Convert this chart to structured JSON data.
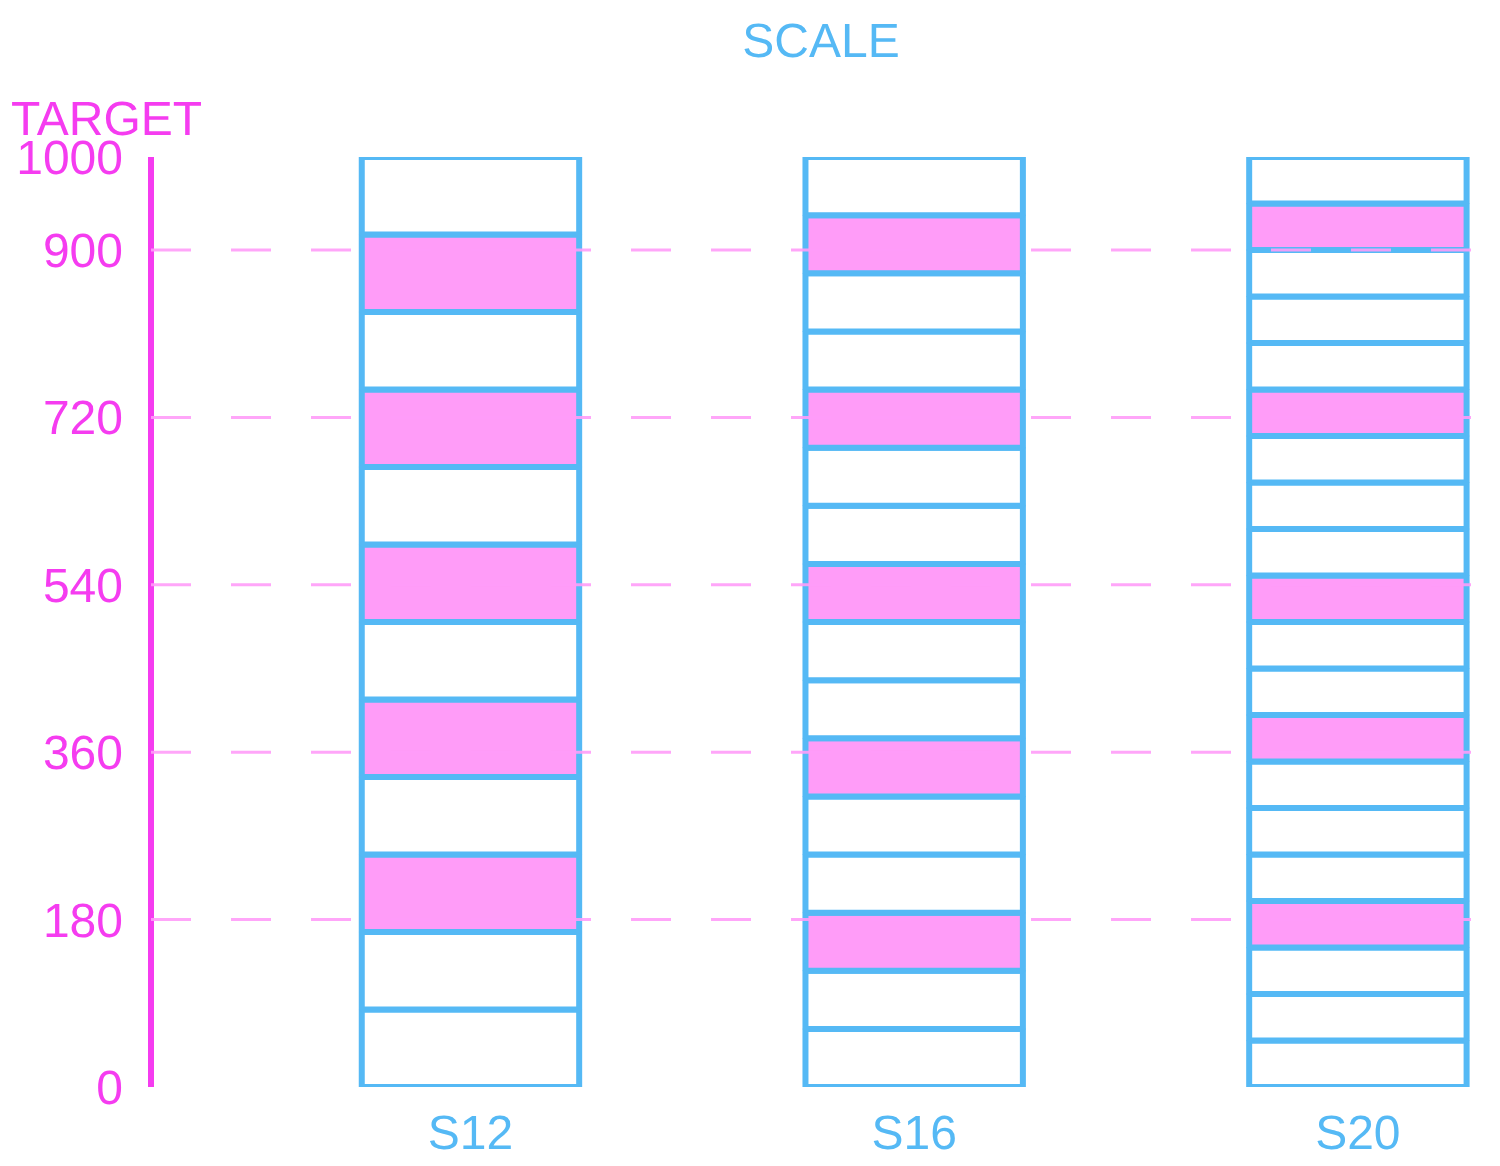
{
  "chart_data": {
    "type": "bar",
    "stacked": true,
    "title": "SCALE",
    "ylabel": "TARGET",
    "categories": [
      "S12",
      "S16",
      "S20"
    ],
    "ylim": [
      0,
      1000
    ],
    "yticks": [
      0,
      180,
      360,
      540,
      720,
      900,
      1000
    ],
    "grid": false,
    "series": [
      {
        "values": [
          83.33,
          62.5,
          50
        ],
        "colors": [
          "#ffffff",
          "#ffffff",
          "#ffffff"
        ]
      },
      {
        "values": [
          83.33,
          62.5,
          50
        ],
        "colors": [
          "#ffffff",
          "#ffffff",
          "#ffffff"
        ]
      },
      {
        "values": [
          83.33,
          62.5,
          50
        ],
        "colors": [
          "#ff9cf8",
          "#ff9cf8",
          "#ffffff"
        ]
      },
      {
        "values": [
          83.33,
          62.5,
          50
        ],
        "colors": [
          "#ffffff",
          "#ffffff",
          "#ff9cf8"
        ]
      },
      {
        "values": [
          83.33,
          62.5,
          50
        ],
        "colors": [
          "#ff9cf8",
          "#ffffff",
          "#ffffff"
        ]
      },
      {
        "values": [
          83.33,
          62.5,
          50
        ],
        "colors": [
          "#ffffff",
          "#ff9cf8",
          "#ffffff"
        ]
      },
      {
        "values": [
          83.33,
          62.5,
          50
        ],
        "colors": [
          "#ff9cf8",
          "#ffffff",
          "#ffffff"
        ]
      },
      {
        "values": [
          83.33,
          62.5,
          50
        ],
        "colors": [
          "#ffffff",
          "#ffffff",
          "#ff9cf8"
        ]
      },
      {
        "values": [
          83.33,
          62.5,
          50
        ],
        "colors": [
          "#ff9cf8",
          "#ff9cf8",
          "#ffffff"
        ]
      },
      {
        "values": [
          83.33,
          62.5,
          50
        ],
        "colors": [
          "#ffffff",
          "#ffffff",
          "#ffffff"
        ]
      },
      {
        "values": [
          83.33,
          62.5,
          50
        ],
        "colors": [
          "#ff9cf8",
          "#ffffff",
          "#ff9cf8"
        ]
      },
      {
        "values": [
          83.33,
          62.5,
          50
        ],
        "colors": [
          "#ffffff",
          "#ff9cf8",
          "#ffffff"
        ]
      },
      {
        "values": [
          null,
          62.5,
          50
        ],
        "colors": [
          null,
          "#ffffff",
          "#ffffff"
        ]
      },
      {
        "values": [
          null,
          62.5,
          50
        ],
        "colors": [
          null,
          "#ffffff",
          "#ffffff"
        ]
      },
      {
        "values": [
          null,
          62.5,
          50
        ],
        "colors": [
          null,
          "#ff9cf8",
          "#ff9cf8"
        ]
      },
      {
        "values": [
          null,
          62.5,
          50
        ],
        "colors": [
          null,
          "#ffffff",
          "#ffffff"
        ]
      },
      {
        "values": [
          null,
          null,
          50
        ],
        "colors": [
          null,
          null,
          "#ffffff"
        ]
      },
      {
        "values": [
          null,
          null,
          50
        ],
        "colors": [
          null,
          null,
          "#ffffff"
        ]
      },
      {
        "values": [
          null,
          null,
          50
        ],
        "colors": [
          null,
          null,
          "#ff9cf8"
        ]
      },
      {
        "values": [
          null,
          null,
          50
        ],
        "colors": [
          null,
          null,
          "#ffffff"
        ]
      }
    ],
    "ref_lines": [
      {
        "axis": "y",
        "value": 180,
        "color": "#ff9cf8",
        "line_style": "dashed"
      },
      {
        "axis": "y",
        "value": 360,
        "color": "#ff9cf8",
        "line_style": "dashed"
      },
      {
        "axis": "y",
        "value": 540,
        "color": "#ff9cf8",
        "line_style": "dashed"
      },
      {
        "axis": "y",
        "value": 720,
        "color": "#ff9cf8",
        "line_style": "dashed"
      },
      {
        "axis": "y",
        "value": 900,
        "color": "#ff9cf8",
        "line_style": "dashed"
      }
    ]
  }
}
